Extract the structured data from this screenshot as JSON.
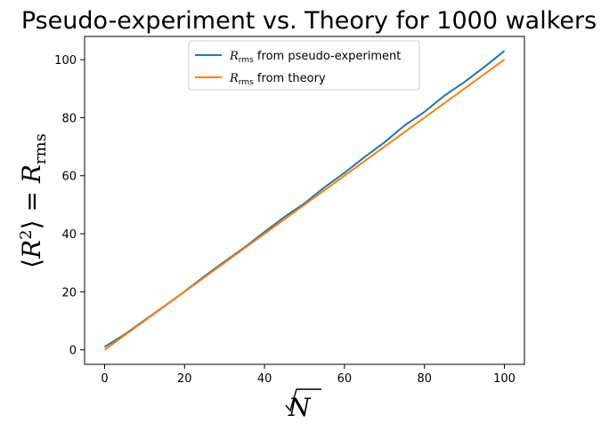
{
  "chart_data": {
    "type": "line",
    "title": "Pseudo-experiment vs. Theory for 1000 walkers",
    "xlabel": "√N",
    "ylabel": "⟨R²⟩ = R_rms",
    "xlim": [
      -5,
      105
    ],
    "ylim": [
      -5,
      108
    ],
    "xticks": [
      0,
      20,
      40,
      60,
      80,
      100
    ],
    "yticks": [
      0,
      20,
      40,
      60,
      80,
      100
    ],
    "grid": false,
    "legend_position": "top-center",
    "series": [
      {
        "name": "R_rms from pseudo-experiment",
        "legend_label": {
          "symbol": "R",
          "subscript": "rms",
          "suffix": " from pseudo-experiment"
        },
        "color": "#1f77b4",
        "x": [
          0,
          5,
          10,
          15,
          20,
          25,
          30,
          35,
          40,
          45,
          50,
          55,
          60,
          65,
          70,
          75,
          80,
          85,
          90,
          95,
          100
        ],
        "y": [
          1.0,
          5.3,
          10.2,
          15.1,
          20.1,
          25.4,
          30.4,
          35.3,
          40.6,
          45.8,
          50.5,
          56.0,
          61.0,
          66.4,
          71.5,
          77.3,
          82.0,
          87.6,
          92.3,
          97.5,
          103.0
        ]
      },
      {
        "name": "R_rms from theory",
        "legend_label": {
          "symbol": "R",
          "subscript": "rms",
          "suffix": " from theory"
        },
        "color": "#ff7f0e",
        "x": [
          0,
          100
        ],
        "y": [
          0,
          100
        ]
      }
    ]
  }
}
